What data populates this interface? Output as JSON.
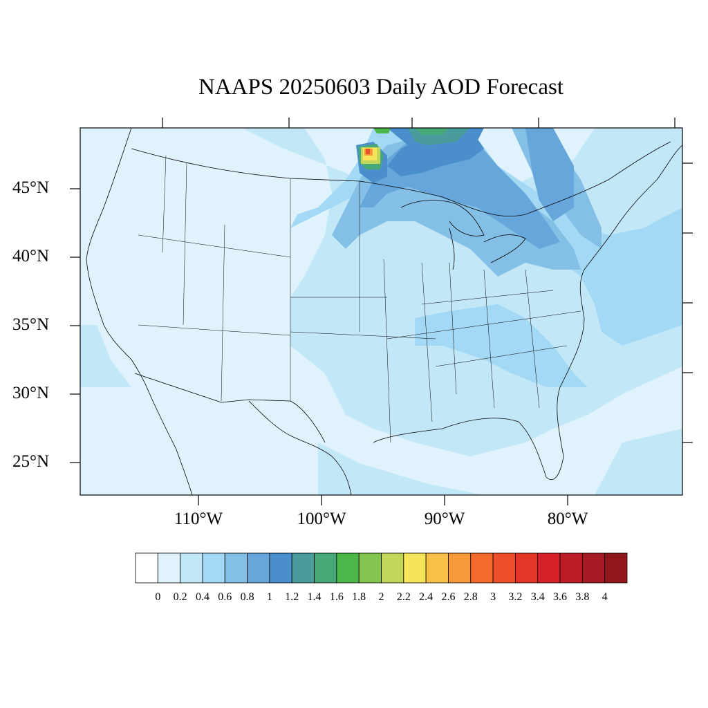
{
  "title": "NAAPS 20250603 Daily AOD Forecast",
  "lat_labels": [
    "45°N",
    "40°N",
    "35°N",
    "30°N",
    "25°N"
  ],
  "lon_labels": [
    "110°W",
    "100°W",
    "90°W",
    "80°W"
  ],
  "colorbar": {
    "labels": [
      "0",
      "0.2",
      "0.4",
      "0.6",
      "0.8",
      "1",
      "1.2",
      "1.4",
      "1.6",
      "1.8",
      "2",
      "2.2",
      "2.4",
      "2.6",
      "2.8",
      "3",
      "3.2",
      "3.4",
      "3.6",
      "3.8",
      "4"
    ],
    "colors": [
      "#ffffff",
      "#e0f3fc",
      "#c2e8f8",
      "#a3d9f4",
      "#84bfe6",
      "#66a6db",
      "#4a8ecb",
      "#4a9c9c",
      "#48a878",
      "#4cb648",
      "#84c450",
      "#c4d65a",
      "#f6e45a",
      "#f8c048",
      "#f79a3c",
      "#f26b2c",
      "#ec4f2a",
      "#e33626",
      "#d5212a",
      "#bd1d27",
      "#a51a23",
      "#8f171c"
    ]
  },
  "map": {
    "background_color": "#e0f3fc",
    "aod_regions": [
      {
        "name": "ocean-west-plume",
        "level": 0.3
      },
      {
        "name": "great-plains-band",
        "level": 0.5
      },
      {
        "name": "midwest-band",
        "level": 0.6
      },
      {
        "name": "great-lakes-plume",
        "level": 0.9
      },
      {
        "name": "canada-smoke-core",
        "level": 1.5
      },
      {
        "name": "manitoba-hotspot",
        "level": 2.8
      },
      {
        "name": "atlantic-band",
        "level": 0.4
      },
      {
        "name": "gulf-region",
        "level": 0.3
      }
    ]
  }
}
